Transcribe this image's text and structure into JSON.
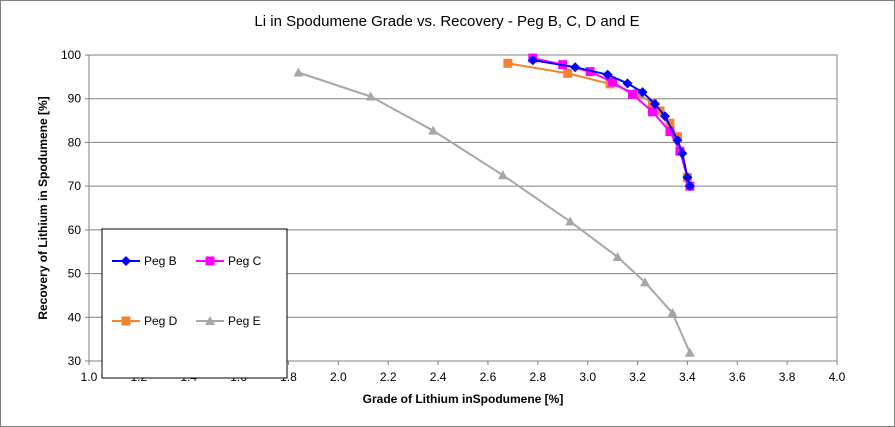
{
  "chart_data": {
    "type": "scatter",
    "title": "Li in Spodumene Grade vs. Recovery - Peg B, C, D and E",
    "xlabel": "Grade of Lithium inSpodumene [%]",
    "ylabel": "Recovery of Lithium in Spodumene [%]",
    "xlim": [
      1.0,
      4.0
    ],
    "ylim": [
      30,
      100
    ],
    "xticks": [
      "1.0",
      "1.2",
      "1.4",
      "1.6",
      "1.8",
      "2.0",
      "2.2",
      "2.4",
      "2.6",
      "2.8",
      "3.0",
      "3.2",
      "3.4",
      "3.6",
      "3.8",
      "4.0"
    ],
    "yticks": [
      "30",
      "40",
      "50",
      "60",
      "70",
      "80",
      "90",
      "100"
    ],
    "grid": "horizontal",
    "legend_position": "bottom-left",
    "series": [
      {
        "name": "Peg B",
        "color": "#0000ff",
        "marker": "diamond",
        "points": [
          [
            2.78,
            98.8
          ],
          [
            2.95,
            97.2
          ],
          [
            3.08,
            95.5
          ],
          [
            3.16,
            93.5
          ],
          [
            3.22,
            91.5
          ],
          [
            3.27,
            88.8
          ],
          [
            3.31,
            86.0
          ],
          [
            3.36,
            80.5
          ],
          [
            3.38,
            77.5
          ],
          [
            3.4,
            72.0
          ],
          [
            3.41,
            70.0
          ]
        ]
      },
      {
        "name": "Peg C",
        "color": "#ff00ff",
        "marker": "square",
        "points": [
          [
            2.78,
            99.3
          ],
          [
            2.9,
            97.8
          ],
          [
            3.01,
            96.2
          ],
          [
            3.1,
            93.8
          ],
          [
            3.18,
            91.0
          ],
          [
            3.26,
            87.0
          ],
          [
            3.33,
            82.5
          ],
          [
            3.37,
            78.0
          ],
          [
            3.41,
            70.0
          ]
        ]
      },
      {
        "name": "Peg D",
        "color": "#f4822f",
        "marker": "square",
        "points": [
          [
            2.68,
            98.1
          ],
          [
            2.92,
            95.8
          ],
          [
            3.09,
            93.4
          ],
          [
            3.2,
            91.2
          ],
          [
            3.26,
            89.0
          ],
          [
            3.29,
            87.2
          ],
          [
            3.33,
            84.4
          ],
          [
            3.36,
            81.3
          ],
          [
            3.4,
            72.0
          ]
        ]
      },
      {
        "name": "Peg E",
        "color": "#a6a6a6",
        "marker": "triangle",
        "points": [
          [
            1.84,
            96.0
          ],
          [
            2.13,
            90.5
          ],
          [
            2.38,
            82.7
          ],
          [
            2.66,
            72.5
          ],
          [
            2.93,
            61.9
          ],
          [
            3.12,
            53.8
          ],
          [
            3.23,
            48.0
          ],
          [
            3.34,
            41.0
          ],
          [
            3.41,
            31.9
          ]
        ]
      }
    ]
  }
}
